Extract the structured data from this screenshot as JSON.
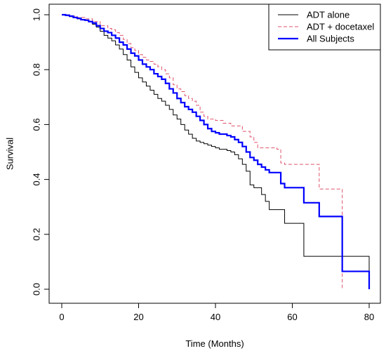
{
  "chart_data": {
    "type": "line",
    "title": "",
    "xlabel": "Time (Months)",
    "ylabel": "Survival",
    "xlim": [
      0,
      80
    ],
    "ylim": [
      0,
      1
    ],
    "x_ticks": [
      "0",
      "20",
      "40",
      "60",
      "80"
    ],
    "y_ticks": [
      "0.0",
      "0.2",
      "0.4",
      "0.6",
      "0.8",
      "1.0"
    ],
    "grid": false,
    "legend_position": "top-right",
    "series": [
      {
        "name": "ADT alone",
        "color": "#000000",
        "line_style": "solid",
        "step": true,
        "points": [
          [
            0,
            1.0
          ],
          [
            1,
            0.997
          ],
          [
            2,
            0.993
          ],
          [
            3,
            0.99
          ],
          [
            4,
            0.985
          ],
          [
            5,
            0.982
          ],
          [
            6,
            0.98
          ],
          [
            7,
            0.975
          ],
          [
            8,
            0.965
          ],
          [
            9,
            0.955
          ],
          [
            10,
            0.94
          ],
          [
            11,
            0.925
          ],
          [
            12,
            0.915
          ],
          [
            13,
            0.905
          ],
          [
            14,
            0.89
          ],
          [
            15,
            0.875
          ],
          [
            16,
            0.855
          ],
          [
            17,
            0.835
          ],
          [
            18,
            0.81
          ],
          [
            19,
            0.79
          ],
          [
            20,
            0.77
          ],
          [
            21,
            0.755
          ],
          [
            22,
            0.74
          ],
          [
            23,
            0.725
          ],
          [
            24,
            0.71
          ],
          [
            25,
            0.695
          ],
          [
            26,
            0.685
          ],
          [
            27,
            0.67
          ],
          [
            28,
            0.655
          ],
          [
            29,
            0.635
          ],
          [
            30,
            0.62
          ],
          [
            31,
            0.6
          ],
          [
            32,
            0.58
          ],
          [
            33,
            0.565
          ],
          [
            34,
            0.55
          ],
          [
            35,
            0.54
          ],
          [
            36,
            0.535
          ],
          [
            37,
            0.53
          ],
          [
            38,
            0.525
          ],
          [
            39,
            0.52
          ],
          [
            40,
            0.515
          ],
          [
            41,
            0.51
          ],
          [
            42,
            0.51
          ],
          [
            43,
            0.505
          ],
          [
            44,
            0.5
          ],
          [
            45,
            0.49
          ],
          [
            46,
            0.475
          ],
          [
            47,
            0.455
          ],
          [
            48,
            0.43
          ],
          [
            49,
            0.38
          ],
          [
            50,
            0.37
          ],
          [
            52,
            0.345
          ],
          [
            53,
            0.32
          ],
          [
            54,
            0.29
          ],
          [
            57,
            0.29
          ],
          [
            58,
            0.24
          ],
          [
            62,
            0.24
          ],
          [
            63,
            0.12
          ],
          [
            80,
            0.12
          ],
          [
            80,
            0.0
          ]
        ]
      },
      {
        "name": "ADT + docetaxel",
        "color": "#df536b",
        "line_style": "dashed",
        "step": true,
        "points": [
          [
            0,
            1.0
          ],
          [
            2,
            0.995
          ],
          [
            4,
            0.99
          ],
          [
            6,
            0.985
          ],
          [
            8,
            0.975
          ],
          [
            10,
            0.96
          ],
          [
            12,
            0.95
          ],
          [
            13,
            0.945
          ],
          [
            14,
            0.935
          ],
          [
            15,
            0.925
          ],
          [
            16,
            0.91
          ],
          [
            17,
            0.895
          ],
          [
            18,
            0.88
          ],
          [
            19,
            0.87
          ],
          [
            20,
            0.855
          ],
          [
            21,
            0.845
          ],
          [
            22,
            0.835
          ],
          [
            23,
            0.83
          ],
          [
            24,
            0.82
          ],
          [
            25,
            0.81
          ],
          [
            26,
            0.8
          ],
          [
            27,
            0.785
          ],
          [
            28,
            0.77
          ],
          [
            29,
            0.745
          ],
          [
            30,
            0.73
          ],
          [
            31,
            0.72
          ],
          [
            32,
            0.705
          ],
          [
            33,
            0.695
          ],
          [
            34,
            0.685
          ],
          [
            35,
            0.67
          ],
          [
            36,
            0.645
          ],
          [
            37,
            0.63
          ],
          [
            38,
            0.62
          ],
          [
            40,
            0.615
          ],
          [
            42,
            0.605
          ],
          [
            44,
            0.595
          ],
          [
            45,
            0.595
          ],
          [
            47,
            0.575
          ],
          [
            49,
            0.555
          ],
          [
            50,
            0.535
          ],
          [
            51,
            0.515
          ],
          [
            52,
            0.515
          ],
          [
            55,
            0.515
          ],
          [
            56,
            0.51
          ],
          [
            57,
            0.46
          ],
          [
            58,
            0.455
          ],
          [
            64,
            0.455
          ],
          [
            67,
            0.365
          ],
          [
            72,
            0.365
          ],
          [
            73,
            0.0
          ]
        ]
      },
      {
        "name": "All Subjects",
        "color": "#0000ff",
        "line_style": "solid",
        "step": true,
        "points": [
          [
            0,
            1.0
          ],
          [
            1,
            0.998
          ],
          [
            2,
            0.995
          ],
          [
            3,
            0.99
          ],
          [
            4,
            0.987
          ],
          [
            5,
            0.982
          ],
          [
            6,
            0.98
          ],
          [
            7,
            0.975
          ],
          [
            8,
            0.97
          ],
          [
            9,
            0.96
          ],
          [
            10,
            0.95
          ],
          [
            11,
            0.94
          ],
          [
            12,
            0.935
          ],
          [
            13,
            0.925
          ],
          [
            14,
            0.915
          ],
          [
            15,
            0.9
          ],
          [
            16,
            0.89
          ],
          [
            17,
            0.875
          ],
          [
            18,
            0.86
          ],
          [
            19,
            0.85
          ],
          [
            20,
            0.835
          ],
          [
            21,
            0.82
          ],
          [
            22,
            0.81
          ],
          [
            23,
            0.8
          ],
          [
            24,
            0.785
          ],
          [
            25,
            0.775
          ],
          [
            26,
            0.765
          ],
          [
            27,
            0.75
          ],
          [
            28,
            0.73
          ],
          [
            29,
            0.715
          ],
          [
            30,
            0.695
          ],
          [
            31,
            0.68
          ],
          [
            32,
            0.665
          ],
          [
            33,
            0.655
          ],
          [
            34,
            0.645
          ],
          [
            35,
            0.63
          ],
          [
            36,
            0.615
          ],
          [
            37,
            0.6
          ],
          [
            38,
            0.585
          ],
          [
            39,
            0.575
          ],
          [
            40,
            0.57
          ],
          [
            41,
            0.565
          ],
          [
            42,
            0.565
          ],
          [
            43,
            0.56
          ],
          [
            44,
            0.555
          ],
          [
            45,
            0.545
          ],
          [
            46,
            0.535
          ],
          [
            47,
            0.52
          ],
          [
            48,
            0.5
          ],
          [
            49,
            0.48
          ],
          [
            50,
            0.47
          ],
          [
            51,
            0.455
          ],
          [
            52,
            0.445
          ],
          [
            53,
            0.435
          ],
          [
            54,
            0.425
          ],
          [
            56,
            0.425
          ],
          [
            57,
            0.385
          ],
          [
            58,
            0.37
          ],
          [
            62,
            0.37
          ],
          [
            63,
            0.315
          ],
          [
            66,
            0.315
          ],
          [
            67,
            0.265
          ],
          [
            72,
            0.265
          ],
          [
            73,
            0.065
          ],
          [
            80,
            0.065
          ],
          [
            80,
            0.0
          ]
        ]
      }
    ]
  }
}
